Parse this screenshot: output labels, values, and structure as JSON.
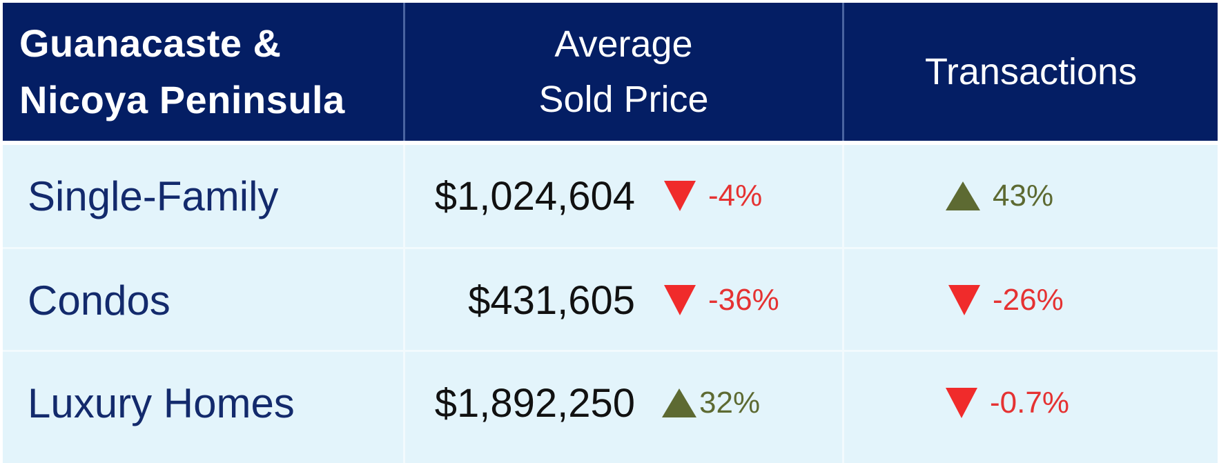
{
  "header": {
    "region": "Guanacaste &\nNicoya Peninsula",
    "avg_price": "Average\nSold Price",
    "transactions": "Transactions"
  },
  "rows": [
    {
      "label": "Single-Family",
      "price": "$1,024,604",
      "price_change": {
        "direction": "down",
        "text": "-4%"
      },
      "trans_change": {
        "direction": "up",
        "text": "43%"
      }
    },
    {
      "label": "Condos",
      "price": "$431,605",
      "price_change": {
        "direction": "down",
        "text": "-36%"
      },
      "trans_change": {
        "direction": "down",
        "text": "-26%"
      }
    },
    {
      "label": "Luxury Homes",
      "price": "$1,892,250",
      "price_change": {
        "direction": "up",
        "text": "32%"
      },
      "trans_change": {
        "direction": "down",
        "text": "-0.7%"
      }
    }
  ],
  "colors": {
    "header_bg": "#041e64",
    "body_bg": "#e3f4fb",
    "down": "#e53232",
    "up": "#5d6a32"
  },
  "icons": {
    "down": "triangle-down-icon",
    "up": "triangle-up-icon"
  }
}
